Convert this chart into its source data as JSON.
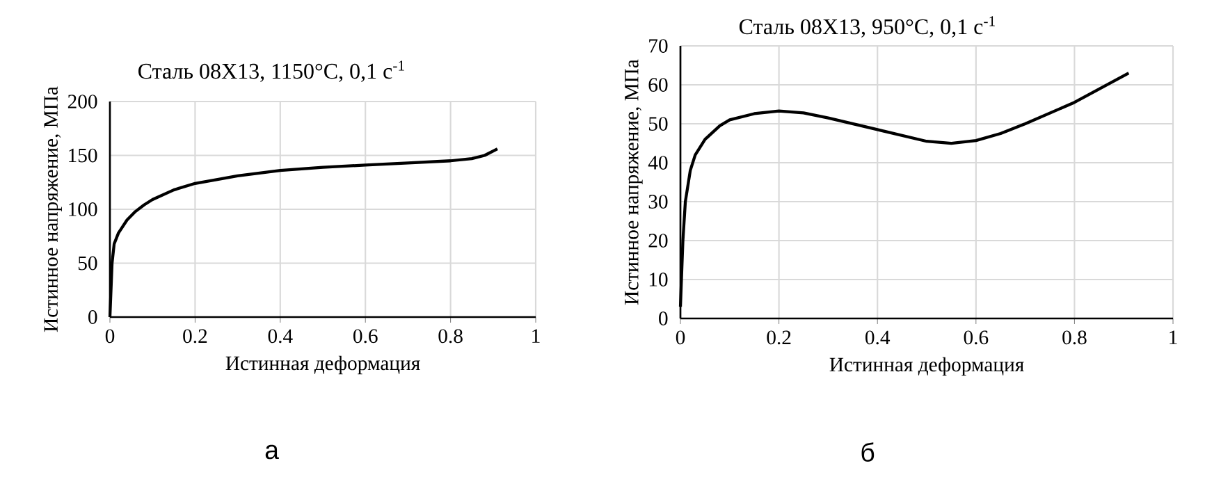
{
  "chart_data": [
    {
      "type": "line",
      "title": "Сталь 08Х13, 1150°C, 0,1 с$^{-1}$",
      "xlabel": "Истинная деформация",
      "ylabel": "Истинное напряжение, МПа",
      "series": [
        {
          "color": "#000000",
          "x": [
            0,
            0.005,
            0.01,
            0.02,
            0.04,
            0.06,
            0.08,
            0.1,
            0.15,
            0.2,
            0.3,
            0.4,
            0.5,
            0.6,
            0.7,
            0.8,
            0.85,
            0.88,
            0.91
          ],
          "values": [
            0,
            50,
            68,
            78,
            90,
            98,
            104,
            109,
            118,
            124,
            131,
            136,
            139,
            141,
            143,
            145,
            147,
            150,
            156
          ]
        }
      ],
      "xlim": [
        0,
        1
      ],
      "ylim": [
        0,
        200
      ],
      "xticks": [
        0,
        0.2,
        0.4,
        0.6,
        0.8,
        1
      ],
      "yticks": [
        0,
        50,
        100,
        150,
        200
      ],
      "grid": true,
      "line_style": "solid",
      "annotations": [
        "а"
      ]
    },
    {
      "type": "line",
      "title": "Сталь 08Х13, 950°C, 0,1 с$^{-1}$",
      "xlabel": "Истинная деформация",
      "ylabel": "Истинное напряжение, МПа",
      "series": [
        {
          "color": "#000000",
          "x": [
            0,
            0.005,
            0.01,
            0.02,
            0.03,
            0.05,
            0.08,
            0.1,
            0.15,
            0.2,
            0.25,
            0.3,
            0.4,
            0.5,
            0.55,
            0.6,
            0.65,
            0.7,
            0.8,
            0.91
          ],
          "values": [
            3,
            20,
            30,
            38,
            42,
            46,
            49.5,
            51,
            52.6,
            53.3,
            52.8,
            51.5,
            48.5,
            45.5,
            45,
            45.7,
            47.5,
            50,
            55.5,
            63
          ]
        }
      ],
      "xlim": [
        0,
        1
      ],
      "ylim": [
        0,
        70
      ],
      "xticks": [
        0,
        0.2,
        0.4,
        0.6,
        0.8,
        1
      ],
      "yticks": [
        0,
        10,
        20,
        30,
        40,
        50,
        60,
        70
      ],
      "grid": true,
      "line_style": "solid",
      "annotations": [
        "б"
      ]
    }
  ]
}
